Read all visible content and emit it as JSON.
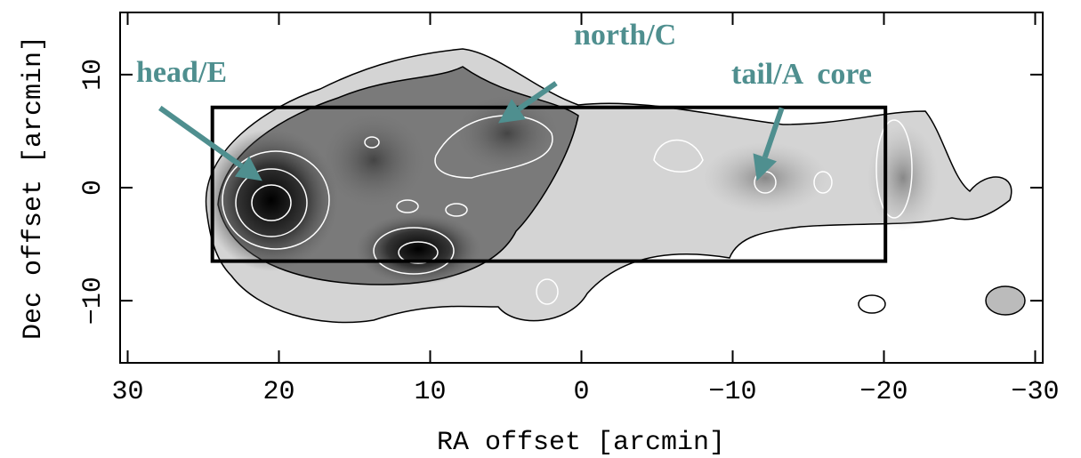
{
  "chart_data": {
    "type": "image",
    "xlabel": "RA offset [arcmin]",
    "ylabel": "Dec offset [arcmin]",
    "xlim": [
      30.5,
      -30.5
    ],
    "ylim": [
      -15.5,
      15.5
    ],
    "xticks": [
      30,
      20,
      10,
      0,
      {
        "value": -10,
        "label": "−10"
      },
      {
        "value": -20,
        "label": "−20"
      },
      {
        "value": -30,
        "label": "−30"
      }
    ],
    "yticks": [
      {
        "value": -10,
        "label": "−10"
      },
      0,
      10
    ],
    "box": {
      "x": [
        24.4,
        -20.1
      ],
      "y": [
        -6.5,
        7.1
      ]
    },
    "annotations": [
      {
        "text": "head/E",
        "x": 21.1,
        "y": 0.6
      },
      {
        "text": "north/C",
        "x": 5.5,
        "y": 5.7
      },
      {
        "text": "tail/A  core",
        "x": -11.6,
        "y": 0.6
      }
    ],
    "annotation_color": "#4f8f8f"
  }
}
